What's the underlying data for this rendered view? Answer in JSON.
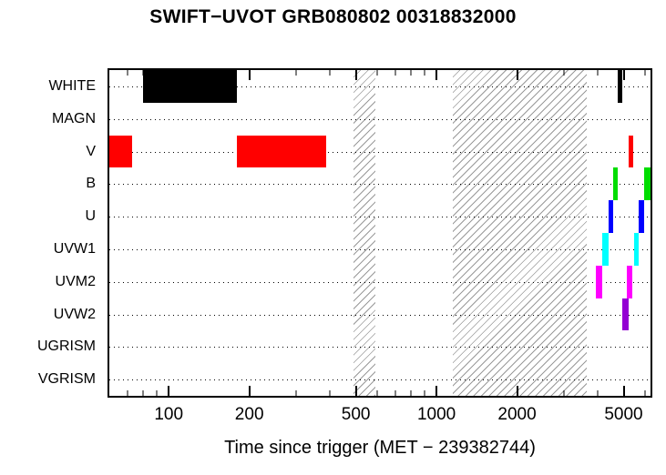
{
  "chart_data": {
    "type": "timeline",
    "title": "SWIFT−UVOT GRB080802 00318832000",
    "xlabel": "Time since trigger (MET − 239382744)",
    "x_scale": "log",
    "xlim": [
      60,
      6300
    ],
    "x_major_ticks": [
      100,
      200,
      500,
      1000,
      2000,
      5000
    ],
    "x_minor_ticks": [
      70,
      80,
      90,
      300,
      400,
      600,
      700,
      800,
      900,
      3000,
      4000,
      6000
    ],
    "grid": "dotted horizontal line per filter row",
    "legend": "none",
    "hatched_regions": [
      [
        490,
        590
      ],
      [
        1150,
        3650
      ]
    ],
    "rows": [
      {
        "label": "WHITE",
        "color": "#000000",
        "intervals": [
          [
            80,
            180
          ],
          [
            4760,
            4960
          ]
        ]
      },
      {
        "label": "MAGN",
        "color": "#000000",
        "intervals": []
      },
      {
        "label": "V",
        "color": "#ff0000",
        "intervals": [
          [
            60,
            73
          ],
          [
            180,
            388
          ],
          [
            5210,
            5450
          ]
        ]
      },
      {
        "label": "B",
        "color": "#00dd00",
        "intervals": [
          [
            4580,
            4770
          ],
          [
            5950,
            6300
          ]
        ]
      },
      {
        "label": "U",
        "color": "#0000ff",
        "intervals": [
          [
            4380,
            4580
          ],
          [
            5690,
            5950
          ]
        ]
      },
      {
        "label": "UVW1",
        "color": "#00ffff",
        "intervals": [
          [
            4150,
            4380
          ],
          [
            5450,
            5690
          ]
        ]
      },
      {
        "label": "UVM2",
        "color": "#ff00ff",
        "intervals": [
          [
            3930,
            4150
          ],
          [
            5150,
            5400
          ]
        ]
      },
      {
        "label": "UVW2",
        "color": "#9400d3",
        "intervals": [
          [
            4960,
            5210
          ]
        ]
      },
      {
        "label": "UGRISM",
        "color": "#000000",
        "intervals": []
      },
      {
        "label": "VGRISM",
        "color": "#000000",
        "intervals": []
      }
    ]
  }
}
